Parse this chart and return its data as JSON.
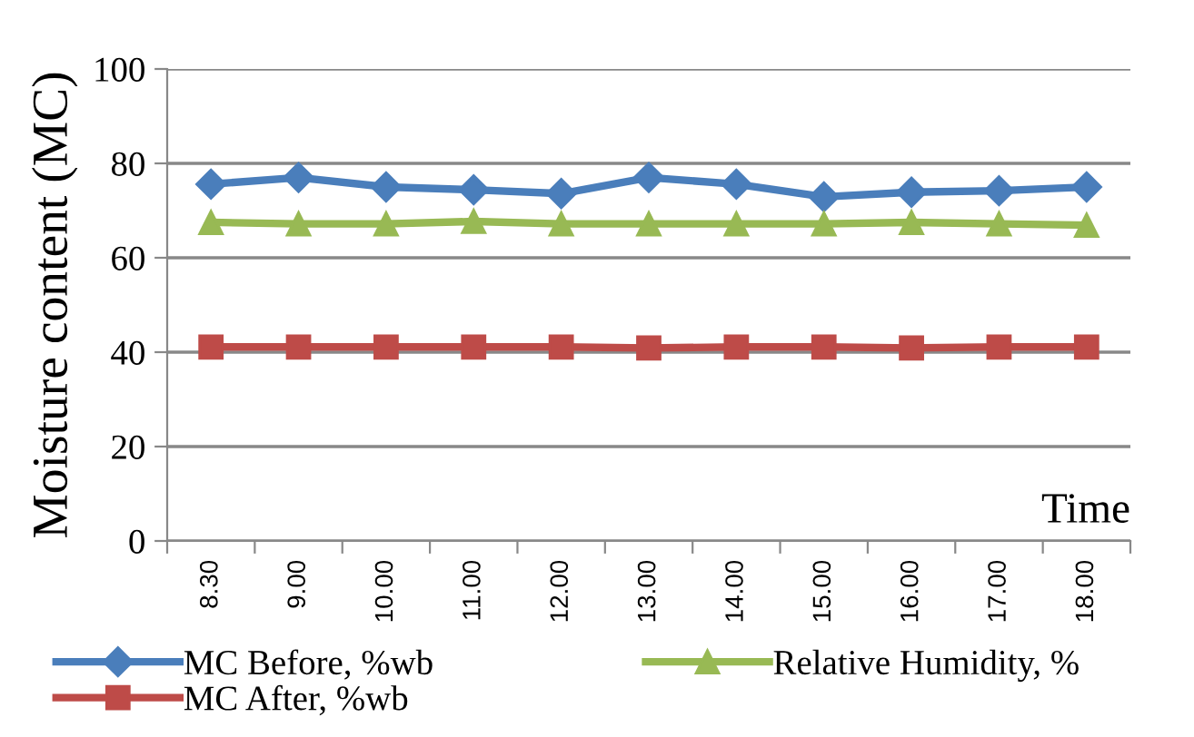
{
  "chart_data": {
    "type": "line",
    "xlabel": "Time",
    "ylabel": "Moisture content (MC)",
    "categories": [
      "8.30",
      "9.00",
      "10.00",
      "11.00",
      "12.00",
      "13.00",
      "14.00",
      "15.00",
      "16.00",
      "17.00",
      "18.00"
    ],
    "series": [
      {
        "name": "MC Before, %wb",
        "color": "#4a7ebb",
        "marker": "diamond",
        "values": [
          75.6,
          77.0,
          75.0,
          74.4,
          73.6,
          77.0,
          75.6,
          72.9,
          73.9,
          74.2,
          75.0
        ]
      },
      {
        "name": "MC After, %wb",
        "color": "#be4b48",
        "marker": "square",
        "values": [
          41.1,
          41.1,
          41.1,
          41.1,
          41.1,
          40.9,
          41.1,
          41.1,
          40.9,
          41.1,
          41.1
        ]
      },
      {
        "name": "Relative Humidity, %",
        "color": "#98b954",
        "marker": "triangle",
        "values": [
          67.5,
          67.2,
          67.2,
          67.7,
          67.2,
          67.2,
          67.2,
          67.2,
          67.5,
          67.2,
          66.9
        ]
      }
    ],
    "ylim": [
      0,
      100
    ],
    "yticks": [
      0,
      20,
      40,
      60,
      80,
      100
    ],
    "grid": "y",
    "legend": "bottom",
    "line_style": "solid"
  }
}
